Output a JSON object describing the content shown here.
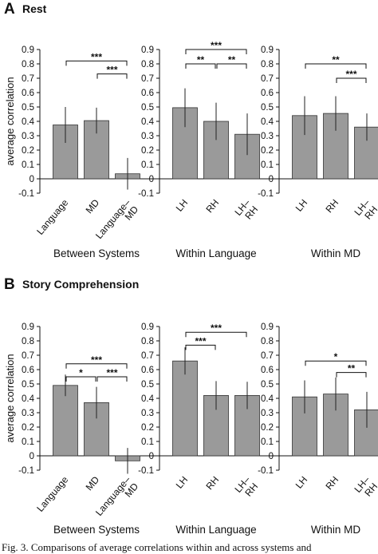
{
  "figure": {
    "panel_a": {
      "letter": "A",
      "title": "Rest"
    },
    "panel_b": {
      "letter": "B",
      "title": "Story Comprehension"
    },
    "caption": "Fig. 3. Comparisons of average correlations within and across systems and"
  },
  "style": {
    "bar_color": "#9a9a9a",
    "bar_edge": "#333333",
    "axis_color": "#111111"
  },
  "chart_data": [
    {
      "id": "a1",
      "panel": "A",
      "type": "bar",
      "ylabel": "average correlation",
      "xlabel": "Between Systems",
      "ylim": [
        -0.1,
        0.9
      ],
      "yticks": [
        "-0.1",
        "0",
        "0.1",
        "0.2",
        "0.3",
        "0.4",
        "0.5",
        "0.6",
        "0.7",
        "0.8",
        "0.9"
      ],
      "categories": [
        "Language",
        "MD",
        "Language–\nMD"
      ],
      "values": [
        0.375,
        0.405,
        0.035
      ],
      "errors": [
        0.125,
        0.09,
        0.11
      ],
      "significance": [
        {
          "pair": [
            0,
            2
          ],
          "label": "***",
          "level": 0.82
        },
        {
          "pair": [
            1,
            2
          ],
          "label": "***",
          "level": 0.73
        }
      ]
    },
    {
      "id": "a2",
      "panel": "A",
      "type": "bar",
      "ylabel": "",
      "xlabel": "Within Language",
      "ylim": [
        -0.1,
        0.9
      ],
      "yticks": [
        "-0.1",
        "0",
        "0.1",
        "0.2",
        "0.3",
        "0.4",
        "0.5",
        "0.6",
        "0.7",
        "0.8",
        "0.9"
      ],
      "categories": [
        "LH",
        "RH",
        "LH–\nRH"
      ],
      "values": [
        0.495,
        0.4,
        0.31
      ],
      "errors": [
        0.135,
        0.13,
        0.145
      ],
      "significance": [
        {
          "pair": [
            0,
            2
          ],
          "label": "***",
          "level": 0.9
        },
        {
          "pair": [
            0,
            1
          ],
          "label": "**",
          "level": 0.8
        },
        {
          "pair": [
            1,
            2
          ],
          "label": "**",
          "level": 0.8
        }
      ]
    },
    {
      "id": "a3",
      "panel": "A",
      "type": "bar",
      "ylabel": "",
      "xlabel": "Within MD",
      "ylim": [
        -0.1,
        0.9
      ],
      "yticks": [
        "-0.1",
        "0",
        "0.1",
        "0.2",
        "0.3",
        "0.4",
        "0.5",
        "0.6",
        "0.7",
        "0.8",
        "0.9"
      ],
      "categories": [
        "LH",
        "RH",
        "LH–\nRH"
      ],
      "values": [
        0.44,
        0.455,
        0.36
      ],
      "errors": [
        0.135,
        0.12,
        0.095
      ],
      "significance": [
        {
          "pair": [
            0,
            2
          ],
          "label": "**",
          "level": 0.8
        },
        {
          "pair": [
            1,
            2
          ],
          "label": "***",
          "level": 0.7
        }
      ]
    },
    {
      "id": "b1",
      "panel": "B",
      "type": "bar",
      "ylabel": "average correlation",
      "xlabel": "Between Systems",
      "ylim": [
        -0.1,
        0.9
      ],
      "yticks": [
        "-0.1",
        "0",
        "0.1",
        "0.2",
        "0.3",
        "0.4",
        "0.5",
        "0.6",
        "0.7",
        "0.8",
        "0.9"
      ],
      "categories": [
        "Language",
        "MD",
        "Language–\nMD"
      ],
      "values": [
        0.49,
        0.37,
        -0.035
      ],
      "errors": [
        0.075,
        0.11,
        0.09
      ],
      "significance": [
        {
          "pair": [
            0,
            2
          ],
          "label": "***",
          "level": 0.64
        },
        {
          "pair": [
            0,
            1
          ],
          "label": "*",
          "level": 0.55
        },
        {
          "pair": [
            1,
            2
          ],
          "label": "***",
          "level": 0.55
        }
      ]
    },
    {
      "id": "b2",
      "panel": "B",
      "type": "bar",
      "ylabel": "",
      "xlabel": "Within Language",
      "ylim": [
        -0.1,
        0.9
      ],
      "yticks": [
        "-0.1",
        "0",
        "0.1",
        "0.2",
        "0.3",
        "0.4",
        "0.5",
        "0.6",
        "0.7",
        "0.8",
        "0.9"
      ],
      "categories": [
        "LH",
        "RH",
        "LH–\nRH"
      ],
      "values": [
        0.66,
        0.42,
        0.42
      ],
      "errors": [
        0.095,
        0.1,
        0.095
      ],
      "significance": [
        {
          "pair": [
            0,
            2
          ],
          "label": "***",
          "level": 0.86
        },
        {
          "pair": [
            0,
            1
          ],
          "label": "***",
          "level": 0.77
        }
      ]
    },
    {
      "id": "b3",
      "panel": "B",
      "type": "bar",
      "ylabel": "",
      "xlabel": "Within MD",
      "ylim": [
        -0.1,
        0.9
      ],
      "yticks": [
        "-0.1",
        "0",
        "0.1",
        "0.2",
        "0.3",
        "0.4",
        "0.5",
        "0.6",
        "0.7",
        "0.8",
        "0.9"
      ],
      "categories": [
        "LH",
        "RH",
        "LH–\nRH"
      ],
      "values": [
        0.41,
        0.43,
        0.32
      ],
      "errors": [
        0.115,
        0.115,
        0.125
      ],
      "significance": [
        {
          "pair": [
            0,
            2
          ],
          "label": "*",
          "level": 0.66
        },
        {
          "pair": [
            1,
            2
          ],
          "label": "**",
          "level": 0.58
        }
      ]
    }
  ]
}
